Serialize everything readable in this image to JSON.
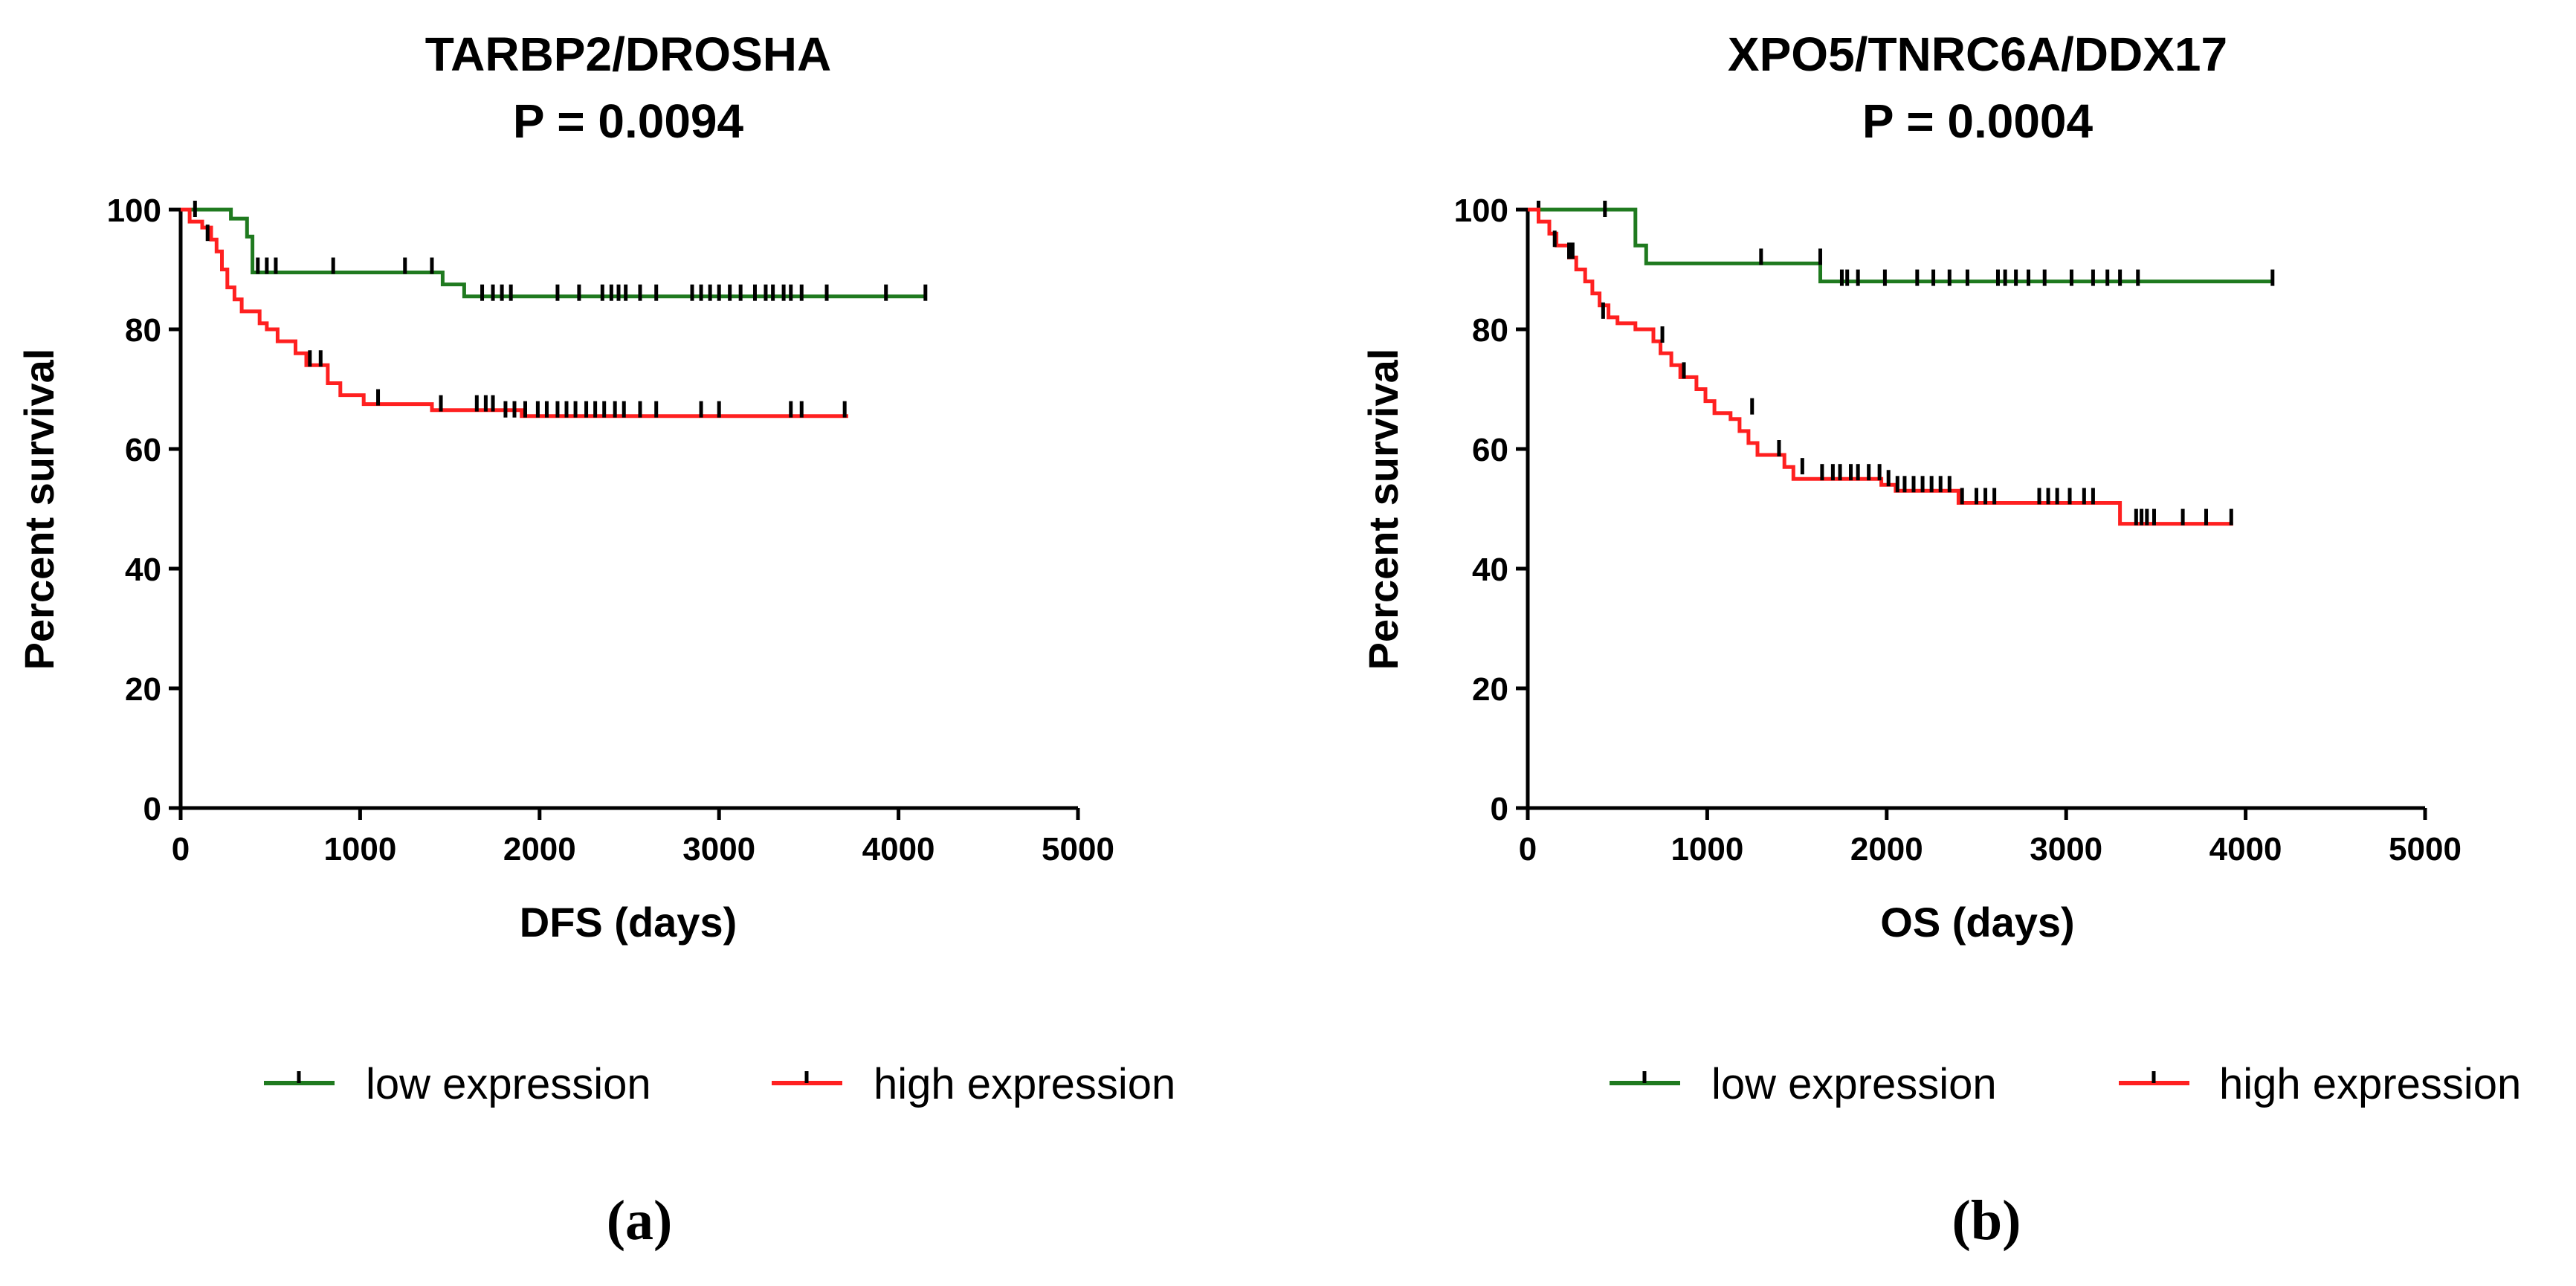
{
  "chart_data": [
    {
      "type": "line",
      "subtype": "kaplan-meier",
      "title_line1": "TARBP2/DROSHA",
      "title_line2": "P = 0.0094",
      "xlabel": "DFS (days)",
      "ylabel": "Percent survival",
      "xlim": [
        0,
        5000
      ],
      "ylim": [
        0,
        100
      ],
      "xticks": [
        "0",
        "1000",
        "2000",
        "3000",
        "4000",
        "5000"
      ],
      "yticks": [
        "0",
        "20",
        "40",
        "60",
        "80",
        "100"
      ],
      "panel_label": "(a)",
      "legend_position": "bottom",
      "series": [
        {
          "name": "low expression",
          "color": "#1f7a1f",
          "steps": [
            [
              0,
              100
            ],
            [
              280,
              100
            ],
            [
              280,
              98.5
            ],
            [
              370,
              98.5
            ],
            [
              370,
              95.5
            ],
            [
              400,
              95.5
            ],
            [
              400,
              89.5
            ],
            [
              1460,
              89.5
            ],
            [
              1460,
              87.5
            ],
            [
              1580,
              87.5
            ],
            [
              1580,
              85.5
            ],
            [
              4150,
              85.5
            ]
          ],
          "censors": [
            [
              80,
              100
            ],
            [
              430,
              90.5
            ],
            [
              480,
              90.5
            ],
            [
              530,
              90.5
            ],
            [
              850,
              90.5
            ],
            [
              1250,
              90.5
            ],
            [
              1400,
              90.5
            ],
            [
              1680,
              86
            ],
            [
              1740,
              86
            ],
            [
              1790,
              86
            ],
            [
              1840,
              86
            ],
            [
              2100,
              86
            ],
            [
              2220,
              86
            ],
            [
              2350,
              86
            ],
            [
              2400,
              86
            ],
            [
              2440,
              86
            ],
            [
              2480,
              86
            ],
            [
              2560,
              86
            ],
            [
              2650,
              86
            ],
            [
              2850,
              86
            ],
            [
              2900,
              86
            ],
            [
              2950,
              86
            ],
            [
              3000,
              86
            ],
            [
              3060,
              86
            ],
            [
              3120,
              86
            ],
            [
              3200,
              86
            ],
            [
              3260,
              86
            ],
            [
              3300,
              86
            ],
            [
              3360,
              86
            ],
            [
              3400,
              86
            ],
            [
              3460,
              86
            ],
            [
              3600,
              86
            ],
            [
              3930,
              86
            ],
            [
              4150,
              86
            ]
          ]
        },
        {
          "name": "high expression",
          "color": "#ff2020",
          "steps": [
            [
              0,
              100
            ],
            [
              50,
              100
            ],
            [
              50,
              98
            ],
            [
              120,
              98
            ],
            [
              120,
              97
            ],
            [
              170,
              97
            ],
            [
              170,
              95
            ],
            [
              200,
              95
            ],
            [
              200,
              93
            ],
            [
              230,
              93
            ],
            [
              230,
              90
            ],
            [
              260,
              90
            ],
            [
              260,
              87
            ],
            [
              300,
              87
            ],
            [
              300,
              85
            ],
            [
              340,
              85
            ],
            [
              340,
              83
            ],
            [
              440,
              83
            ],
            [
              440,
              81
            ],
            [
              480,
              81
            ],
            [
              480,
              80
            ],
            [
              540,
              80
            ],
            [
              540,
              78
            ],
            [
              640,
              78
            ],
            [
              640,
              76
            ],
            [
              700,
              76
            ],
            [
              700,
              74
            ],
            [
              820,
              74
            ],
            [
              820,
              71
            ],
            [
              890,
              71
            ],
            [
              890,
              69
            ],
            [
              1020,
              69
            ],
            [
              1020,
              67.5
            ],
            [
              1400,
              67.5
            ],
            [
              1400,
              66.5
            ],
            [
              1900,
              66.5
            ],
            [
              1900,
              65.5
            ],
            [
              3720,
              65.5
            ]
          ],
          "censors": [
            [
              150,
              96
            ],
            [
              720,
              75
            ],
            [
              780,
              75
            ],
            [
              1100,
              68.5
            ],
            [
              1450,
              67.5
            ],
            [
              1650,
              67.5
            ],
            [
              1700,
              67.5
            ],
            [
              1740,
              67.5
            ],
            [
              1810,
              66.5
            ],
            [
              1860,
              66.5
            ],
            [
              1920,
              66.5
            ],
            [
              1990,
              66.5
            ],
            [
              2040,
              66.5
            ],
            [
              2100,
              66.5
            ],
            [
              2150,
              66.5
            ],
            [
              2200,
              66.5
            ],
            [
              2260,
              66.5
            ],
            [
              2310,
              66.5
            ],
            [
              2360,
              66.5
            ],
            [
              2420,
              66.5
            ],
            [
              2470,
              66.5
            ],
            [
              2560,
              66.5
            ],
            [
              2650,
              66.5
            ],
            [
              2900,
              66.5
            ],
            [
              3000,
              66.5
            ],
            [
              3400,
              66.5
            ],
            [
              3460,
              66.5
            ],
            [
              3700,
              66.5
            ]
          ]
        }
      ]
    },
    {
      "type": "line",
      "subtype": "kaplan-meier",
      "title_line1": "XPO5/TNRC6A/DDX17",
      "title_line2": "P = 0.0004",
      "xlabel": "OS (days)",
      "ylabel": "Percent survival",
      "xlim": [
        0,
        5000
      ],
      "ylim": [
        0,
        100
      ],
      "xticks": [
        "0",
        "1000",
        "2000",
        "3000",
        "4000",
        "5000"
      ],
      "yticks": [
        "0",
        "20",
        "40",
        "60",
        "80",
        "100"
      ],
      "panel_label": "(b)",
      "legend_position": "bottom",
      "series": [
        {
          "name": "low expression",
          "color": "#1f7a1f",
          "steps": [
            [
              0,
              100
            ],
            [
              600,
              100
            ],
            [
              600,
              94
            ],
            [
              660,
              94
            ],
            [
              660,
              91
            ],
            [
              1630,
              91
            ],
            [
              1630,
              88
            ],
            [
              4150,
              88
            ]
          ],
          "censors": [
            [
              60,
              100
            ],
            [
              430,
              100
            ],
            [
              1300,
              92
            ],
            [
              1630,
              92
            ],
            [
              1750,
              88.5
            ],
            [
              1780,
              88.5
            ],
            [
              1840,
              88.5
            ],
            [
              1990,
              88.5
            ],
            [
              2170,
              88.5
            ],
            [
              2260,
              88.5
            ],
            [
              2350,
              88.5
            ],
            [
              2450,
              88.5
            ],
            [
              2620,
              88.5
            ],
            [
              2660,
              88.5
            ],
            [
              2720,
              88.5
            ],
            [
              2790,
              88.5
            ],
            [
              2880,
              88.5
            ],
            [
              3030,
              88.5
            ],
            [
              3150,
              88.5
            ],
            [
              3230,
              88.5
            ],
            [
              3300,
              88.5
            ],
            [
              3400,
              88.5
            ],
            [
              4150,
              88.5
            ]
          ]
        },
        {
          "name": "high expression",
          "color": "#ff2020",
          "steps": [
            [
              0,
              100
            ],
            [
              60,
              100
            ],
            [
              60,
              98
            ],
            [
              120,
              98
            ],
            [
              120,
              96
            ],
            [
              160,
              96
            ],
            [
              160,
              94
            ],
            [
              230,
              94
            ],
            [
              230,
              92
            ],
            [
              270,
              92
            ],
            [
              270,
              90
            ],
            [
              320,
              90
            ],
            [
              320,
              88
            ],
            [
              360,
              88
            ],
            [
              360,
              86
            ],
            [
              400,
              86
            ],
            [
              400,
              84
            ],
            [
              450,
              84
            ],
            [
              450,
              82
            ],
            [
              500,
              82
            ],
            [
              500,
              81
            ],
            [
              600,
              81
            ],
            [
              600,
              80
            ],
            [
              700,
              80
            ],
            [
              700,
              78
            ],
            [
              740,
              78
            ],
            [
              740,
              76
            ],
            [
              800,
              76
            ],
            [
              800,
              74
            ],
            [
              850,
              74
            ],
            [
              850,
              72
            ],
            [
              940,
              72
            ],
            [
              940,
              70
            ],
            [
              990,
              70
            ],
            [
              990,
              68
            ],
            [
              1040,
              68
            ],
            [
              1040,
              66
            ],
            [
              1130,
              66
            ],
            [
              1130,
              65
            ],
            [
              1180,
              65
            ],
            [
              1180,
              63
            ],
            [
              1230,
              63
            ],
            [
              1230,
              61
            ],
            [
              1280,
              61
            ],
            [
              1280,
              59
            ],
            [
              1430,
              59
            ],
            [
              1430,
              57
            ],
            [
              1480,
              57
            ],
            [
              1480,
              55
            ],
            [
              1970,
              55
            ],
            [
              1970,
              54
            ],
            [
              2050,
              54
            ],
            [
              2050,
              53
            ],
            [
              2400,
              53
            ],
            [
              2400,
              51
            ],
            [
              3300,
              51
            ],
            [
              3300,
              47.5
            ],
            [
              3930,
              47.5
            ]
          ],
          "censors": [
            [
              150,
              95
            ],
            [
              230,
              93
            ],
            [
              250,
              93
            ],
            [
              420,
              83
            ],
            [
              750,
              79
            ],
            [
              870,
              73
            ],
            [
              1250,
              67
            ],
            [
              1400,
              60
            ],
            [
              1530,
              57
            ],
            [
              1640,
              56
            ],
            [
              1700,
              56
            ],
            [
              1740,
              56
            ],
            [
              1800,
              56
            ],
            [
              1840,
              56
            ],
            [
              1900,
              56
            ],
            [
              1960,
              56
            ],
            [
              2010,
              55
            ],
            [
              2060,
              54
            ],
            [
              2100,
              54
            ],
            [
              2150,
              54
            ],
            [
              2200,
              54
            ],
            [
              2250,
              54
            ],
            [
              2300,
              54
            ],
            [
              2350,
              54
            ],
            [
              2420,
              52
            ],
            [
              2500,
              52
            ],
            [
              2550,
              52
            ],
            [
              2600,
              52
            ],
            [
              2850,
              52
            ],
            [
              2900,
              52
            ],
            [
              2950,
              52
            ],
            [
              3020,
              52
            ],
            [
              3100,
              52
            ],
            [
              3150,
              52
            ],
            [
              3390,
              48.5
            ],
            [
              3420,
              48.5
            ],
            [
              3450,
              48.5
            ],
            [
              3490,
              48.5
            ],
            [
              3650,
              48.5
            ],
            [
              3780,
              48.5
            ],
            [
              3920,
              48.5
            ]
          ]
        }
      ]
    }
  ]
}
